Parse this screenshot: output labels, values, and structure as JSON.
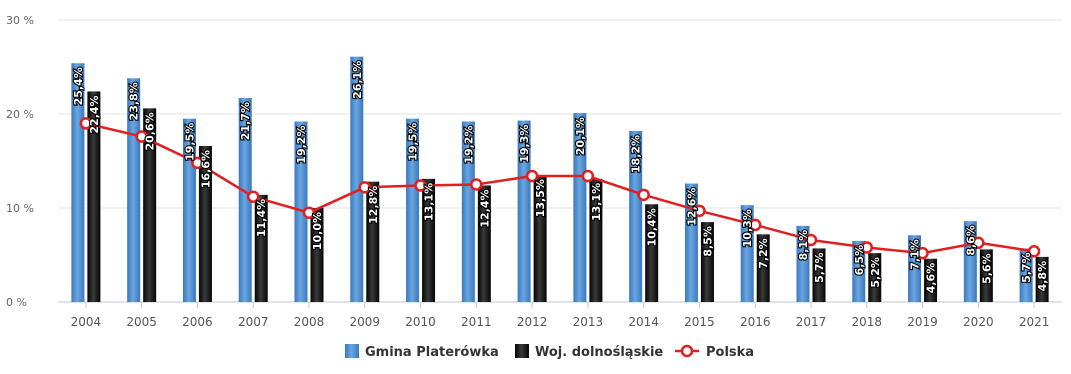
{
  "chart_data": {
    "type": "bar",
    "title": "",
    "xlabel": "",
    "ylabel": "",
    "categories": [
      "2004",
      "2005",
      "2006",
      "2007",
      "2008",
      "2009",
      "2010",
      "2011",
      "2012",
      "2013",
      "2014",
      "2015",
      "2016",
      "2017",
      "2018",
      "2019",
      "2020",
      "2021"
    ],
    "ylim": [
      0,
      30
    ],
    "yticks": [
      0,
      10,
      20,
      30
    ],
    "ytick_labels": [
      "0 %",
      "10 %",
      "20 %",
      "30 %"
    ],
    "grid": true,
    "legend_position": "bottom",
    "series": [
      {
        "name": "Gmina Platerówka",
        "type": "bar",
        "color": "#4f8fd0",
        "values": [
          25.4,
          23.8,
          19.5,
          21.7,
          19.2,
          26.1,
          19.5,
          19.2,
          19.3,
          20.1,
          18.2,
          12.6,
          10.3,
          8.1,
          6.5,
          7.1,
          8.6,
          5.7
        ],
        "labels": [
          "25,4%",
          "23,8%",
          "19,5%",
          "21,7%",
          "19,2%",
          "26,1%",
          "19,5%",
          "19,2%",
          "19,3%",
          "20,1%",
          "18,2%",
          "12,6%",
          "10,3%",
          "8,1%",
          "6,5%",
          "7,1%",
          "8,6%",
          "5,7%"
        ]
      },
      {
        "name": "Woj. dolnośląskie",
        "type": "bar",
        "color": "#1a1a1a",
        "values": [
          22.4,
          20.6,
          16.6,
          11.4,
          10.0,
          12.8,
          13.1,
          12.4,
          13.5,
          13.1,
          10.4,
          8.5,
          7.2,
          5.7,
          5.2,
          4.6,
          5.6,
          4.8
        ],
        "labels": [
          "22,4%",
          "20,6%",
          "16,6%",
          "11,4%",
          "10,0%",
          "12,8%",
          "13,1%",
          "12,4%",
          "13,5%",
          "13,1%",
          "10,4%",
          "8,5%",
          "7,2%",
          "5,7%",
          "5,2%",
          "4,6%",
          "5,6%",
          "4,8%"
        ]
      },
      {
        "name": "Polska",
        "type": "line",
        "color": "#e02020",
        "values": [
          19.0,
          17.6,
          14.8,
          11.2,
          9.5,
          12.2,
          12.4,
          12.5,
          13.4,
          13.4,
          11.4,
          9.7,
          8.2,
          6.6,
          5.8,
          5.2,
          6.3,
          5.4
        ]
      }
    ]
  }
}
